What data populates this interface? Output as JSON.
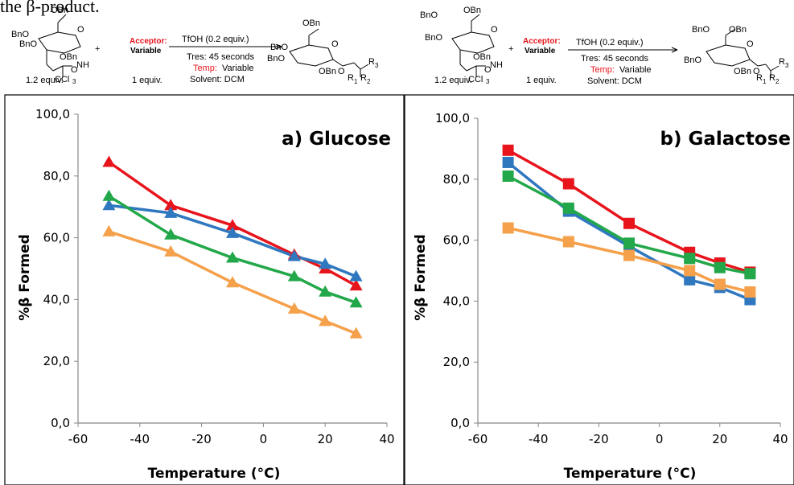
{
  "lead_text": "the β-product.",
  "schemes": [
    {
      "donor_equiv": "1.2 equiv.",
      "acceptor_label": "Acceptor:",
      "acceptor_value": "Variable",
      "acceptor_equiv": "1 equiv.",
      "conditions": [
        "TfOH (0.2 equiv.)",
        "Tres: 45 seconds",
        "Solvent: DCM"
      ],
      "temp_label": "Temp:",
      "temp_value": "Variable"
    },
    {
      "donor_equiv": "1.2 equiv.",
      "acceptor_label": "Acceptor:",
      "acceptor_value": "Variable",
      "acceptor_equiv": "1 equiv.",
      "conditions": [
        "TfOH (0.2 equiv.)",
        "Tres: 45 seconds",
        "Solvent: DCM"
      ],
      "temp_label": "Temp:",
      "temp_value": "Variable"
    }
  ],
  "colors": {
    "red": "#e8141c",
    "blue": "#2f78bf",
    "green": "#22a84a",
    "orange": "#f5a04a",
    "accent_red": "#e8141c"
  },
  "chart_data": [
    {
      "type": "line",
      "title": "a) Glucose",
      "xlabel": "Temperature (°C)",
      "ylabel": "%β Formed",
      "xlim": [
        -60,
        40
      ],
      "ylim": [
        0,
        100
      ],
      "xticks": [
        "-60",
        "-40",
        "-20",
        "0",
        "20",
        "40"
      ],
      "yticks": [
        "0,0",
        "20,0",
        "40,0",
        "60,0",
        "80,0",
        "100,0"
      ],
      "marker": "triangle",
      "grid": false,
      "legend": "none",
      "series": [
        {
          "color": "#e8141c",
          "x": [
            -50,
            -30,
            -10,
            10,
            20,
            30
          ],
          "y": [
            84.5,
            70.5,
            64.0,
            54.5,
            50.0,
            44.5
          ]
        },
        {
          "color": "#2f78bf",
          "x": [
            -50,
            -30,
            -10,
            10,
            20,
            30
          ],
          "y": [
            70.5,
            68.0,
            61.5,
            54.0,
            51.5,
            47.5
          ]
        },
        {
          "color": "#22a84a",
          "x": [
            -50,
            -30,
            -10,
            10,
            20,
            30
          ],
          "y": [
            73.5,
            61.0,
            53.5,
            47.5,
            42.5,
            39.0
          ]
        },
        {
          "color": "#f5a04a",
          "x": [
            -50,
            -30,
            -10,
            10,
            20,
            30
          ],
          "y": [
            62.0,
            55.5,
            45.5,
            37.0,
            33.0,
            29.0
          ]
        }
      ]
    },
    {
      "type": "line",
      "title": "b) Galactose",
      "xlabel": "Temperature (°C)",
      "ylabel": "%β Formed",
      "xlim": [
        -60,
        40
      ],
      "ylim": [
        0,
        100
      ],
      "xticks": [
        "-60",
        "-40",
        "-20",
        "0",
        "20",
        "40"
      ],
      "yticks": [
        "0,0",
        "20,0",
        "40,0",
        "60,0",
        "80,0",
        "100,0"
      ],
      "marker": "square",
      "grid": false,
      "legend": "none",
      "series": [
        {
          "color": "#e8141c",
          "x": [
            -50,
            -30,
            -10,
            10,
            20,
            30
          ],
          "y": [
            89.5,
            78.5,
            65.5,
            56.0,
            52.5,
            49.5
          ]
        },
        {
          "color": "#2f78bf",
          "x": [
            -50,
            -30,
            -10,
            10,
            20,
            30
          ],
          "y": [
            85.5,
            69.5,
            58.0,
            47.0,
            44.5,
            40.5
          ]
        },
        {
          "color": "#22a84a",
          "x": [
            -50,
            -30,
            -10,
            10,
            20,
            30
          ],
          "y": [
            81.0,
            70.5,
            59.0,
            54.0,
            51.0,
            49.0
          ]
        },
        {
          "color": "#f5a04a",
          "x": [
            -50,
            -30,
            -10,
            10,
            20,
            30
          ],
          "y": [
            64.0,
            59.5,
            55.0,
            50.0,
            45.5,
            43.0
          ]
        }
      ]
    }
  ]
}
